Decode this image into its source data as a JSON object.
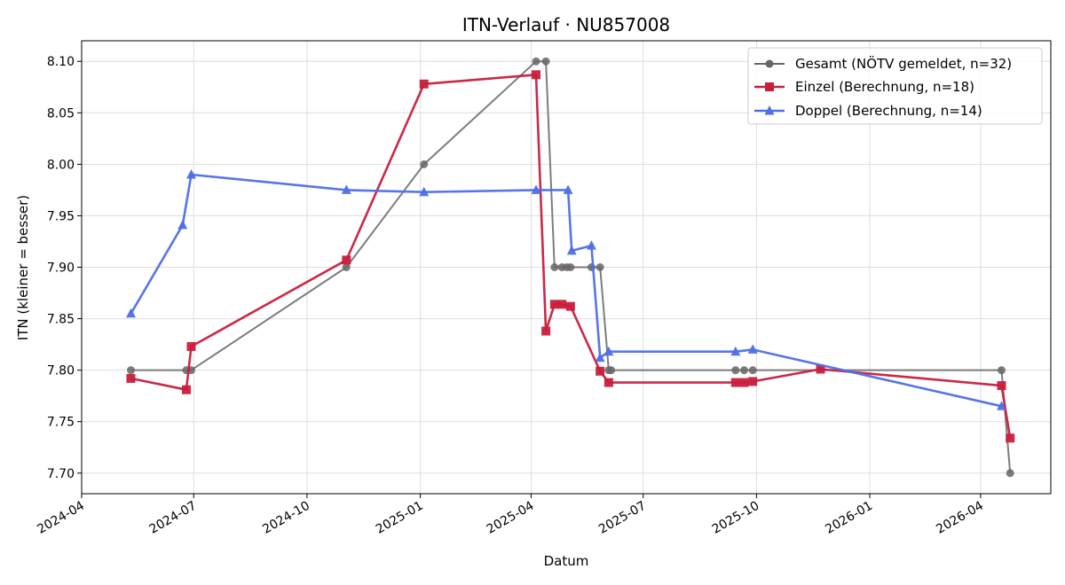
{
  "chart_data": {
    "type": "line",
    "title": "ITN-Verlauf · NU857008",
    "xlabel": "Datum",
    "ylabel": "ITN  (kleiner = besser)",
    "x_axis_type": "date",
    "xlim": [
      "2024-04-01",
      "2026-05-28"
    ],
    "ylim": [
      7.68,
      8.12
    ],
    "x_ticks": [
      "2024-04",
      "2024-07",
      "2024-10",
      "2025-01",
      "2025-04",
      "2025-07",
      "2025-10",
      "2026-01",
      "2026-04"
    ],
    "y_ticks": [
      7.7,
      7.75,
      7.8,
      7.85,
      7.9,
      7.95,
      8.0,
      8.05,
      8.1
    ],
    "grid": true,
    "legend_position": "top-right",
    "series": [
      {
        "name": "Gesamt (NÖTV gemeldet, n=32)",
        "color": "#666666",
        "marker": "circle",
        "points": [
          [
            "2024-05-11",
            7.8
          ],
          [
            "2024-06-25",
            7.8
          ],
          [
            "2024-06-29",
            7.8
          ],
          [
            "2024-11-02",
            7.9
          ],
          [
            "2025-01-04",
            8.0
          ],
          [
            "2025-04-05",
            8.1
          ],
          [
            "2025-04-13",
            8.1
          ],
          [
            "2025-04-20",
            7.9
          ],
          [
            "2025-04-26",
            7.9
          ],
          [
            "2025-04-30",
            7.9
          ],
          [
            "2025-05-03",
            7.9
          ],
          [
            "2025-05-20",
            7.9
          ],
          [
            "2025-05-27",
            7.9
          ],
          [
            "2025-06-03",
            7.8
          ],
          [
            "2025-06-05",
            7.8
          ],
          [
            "2025-09-14",
            7.8
          ],
          [
            "2025-09-21",
            7.8
          ],
          [
            "2025-09-28",
            7.8
          ],
          [
            "2026-04-18",
            7.8
          ],
          [
            "2026-04-25",
            7.7
          ]
        ]
      },
      {
        "name": "Einzel (Berechnung, n=18)",
        "color": "#c81e3c",
        "marker": "square",
        "points": [
          [
            "2024-05-11",
            7.792
          ],
          [
            "2024-06-25",
            7.781
          ],
          [
            "2024-06-29",
            7.823
          ],
          [
            "2024-11-02",
            7.907
          ],
          [
            "2025-01-04",
            8.078
          ],
          [
            "2025-04-05",
            8.087
          ],
          [
            "2025-04-13",
            7.838
          ],
          [
            "2025-04-20",
            7.864
          ],
          [
            "2025-04-26",
            7.864
          ],
          [
            "2025-05-03",
            7.862
          ],
          [
            "2025-05-27",
            7.799
          ],
          [
            "2025-06-03",
            7.788
          ],
          [
            "2025-09-14",
            7.788
          ],
          [
            "2025-09-21",
            7.788
          ],
          [
            "2025-09-28",
            7.789
          ],
          [
            "2025-11-22",
            7.801
          ],
          [
            "2026-04-18",
            7.785
          ],
          [
            "2026-04-25",
            7.734
          ]
        ]
      },
      {
        "name": "Doppel (Berechnung, n=14)",
        "color": "#4f6ee8",
        "marker": "triangle",
        "points": [
          [
            "2024-05-11",
            7.855
          ],
          [
            "2024-06-22",
            7.941
          ],
          [
            "2024-06-29",
            7.99
          ],
          [
            "2024-11-02",
            7.975
          ],
          [
            "2025-01-04",
            7.973
          ],
          [
            "2025-04-05",
            7.975
          ],
          [
            "2025-05-01",
            7.975
          ],
          [
            "2025-05-04",
            7.916
          ],
          [
            "2025-05-20",
            7.921
          ],
          [
            "2025-05-27",
            7.812
          ],
          [
            "2025-06-03",
            7.818
          ],
          [
            "2025-09-14",
            7.818
          ],
          [
            "2025-09-28",
            7.82
          ],
          [
            "2026-04-18",
            7.765
          ]
        ]
      }
    ]
  }
}
